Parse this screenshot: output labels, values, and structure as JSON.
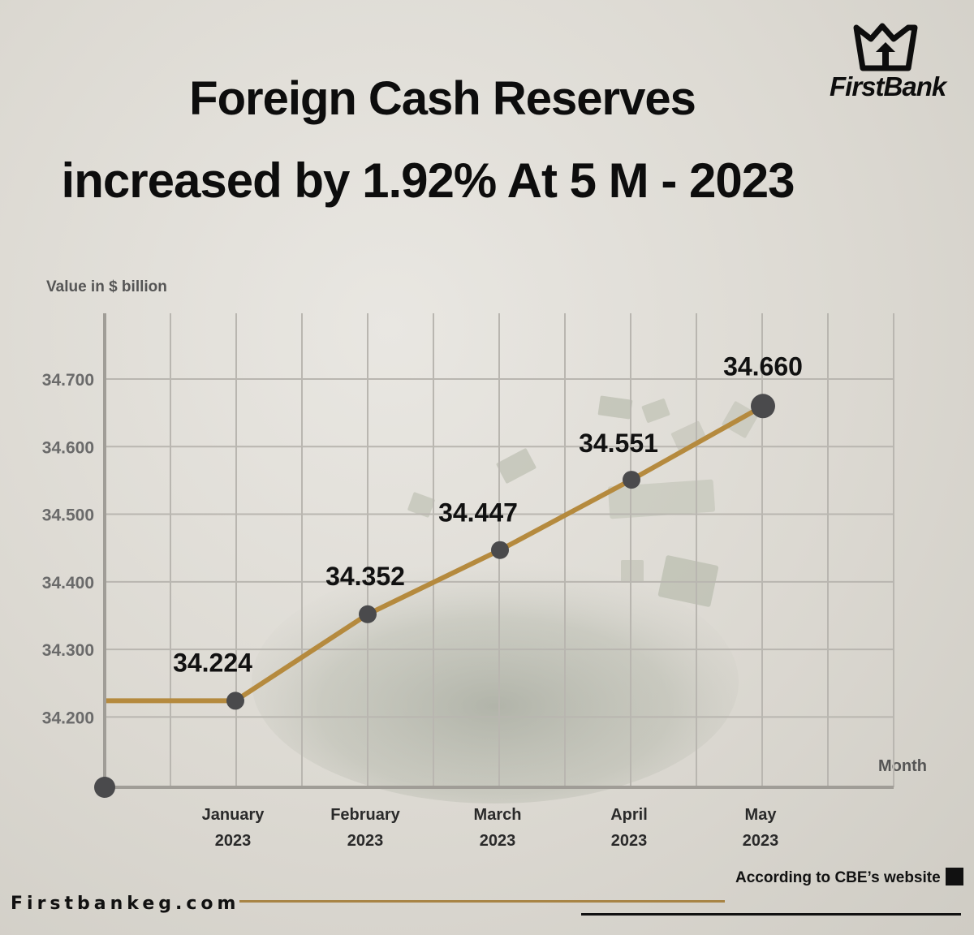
{
  "header": {
    "title_line1": "Foreign Cash Reserves",
    "title_line2": "increased by 1.92% At 5 M - 2023",
    "brand": "FirstBank",
    "logo_icon": "crown-arrow-icon"
  },
  "footer": {
    "source": "According to CBE’s website",
    "website": "Firstbankeg.com"
  },
  "colors": {
    "line": "#b58a3e",
    "marker": "#4a4a4c",
    "grid": "#b9b6b0",
    "axis": "#a09d97"
  },
  "chart_data": {
    "type": "line",
    "xlabel": "Month",
    "ylabel": "Value in $ billion",
    "categories": [
      "January\n2023",
      "February\n2023",
      "March\n2023",
      "April\n2023",
      "May\n2023"
    ],
    "values": [
      34.224,
      34.352,
      34.447,
      34.551,
      34.66
    ],
    "data_labels": [
      "34.224",
      "34.352",
      "34.447",
      "34.551",
      "34.660"
    ],
    "y_ticks": [
      "34.200",
      "34.300",
      "34.400",
      "34.500",
      "34.600",
      "34.700"
    ],
    "y_tick_values": [
      34.2,
      34.3,
      34.4,
      34.5,
      34.6,
      34.7
    ],
    "ylim": [
      34.096,
      34.8
    ],
    "grid": true,
    "legend": "none"
  }
}
